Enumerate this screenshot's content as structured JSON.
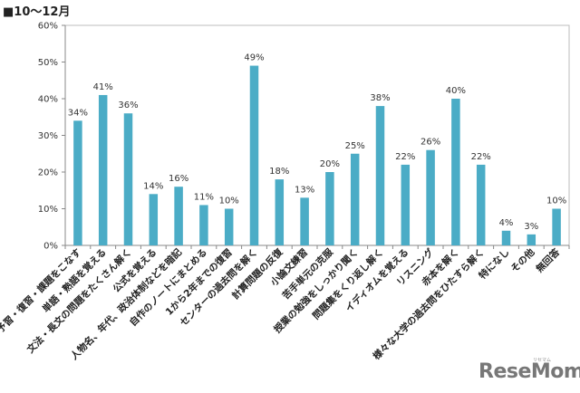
{
  "chart_data": {
    "type": "bar",
    "title": "■10～12月",
    "xlabel": "",
    "ylabel": "",
    "ylim": [
      0,
      60
    ],
    "y_ticks": [
      "0%",
      "10%",
      "20%",
      "30%",
      "40%",
      "50%",
      "60%"
    ],
    "categories": [
      "予習・復習・課題をこなす",
      "単語・熟語を覚える",
      "文法・長文の問題をたくさん解く",
      "公式を覚える",
      "人物名、年代、政治体制などを暗記",
      "自作のノートにまとめる",
      "1から2年までの復習",
      "センターの過去問を解く",
      "計算問題の反復",
      "小論文練習",
      "苦手単元の克服",
      "授業の勉強をしっかり聞く",
      "問題集をくり返し解く",
      "イディオムを覚える",
      "リスニング",
      "赤本を解く",
      "様々な大学の過去問をひたすら解く",
      "特になし",
      "その他",
      "無回答"
    ],
    "values": [
      34,
      41,
      36,
      14,
      16,
      11,
      10,
      49,
      18,
      13,
      20,
      25,
      38,
      22,
      26,
      40,
      22,
      4,
      3,
      10
    ],
    "value_labels": [
      "34%",
      "41%",
      "36%",
      "14%",
      "16%",
      "11%",
      "10%",
      "49%",
      "18%",
      "13%",
      "20%",
      "25%",
      "38%",
      "22%",
      "26%",
      "40%",
      "22%",
      "4%",
      "3%",
      "10%"
    ],
    "grid": false,
    "bar_color": "#4bacc6"
  },
  "watermark": {
    "text": "ReseMom",
    "ruby": "リセマム"
  }
}
